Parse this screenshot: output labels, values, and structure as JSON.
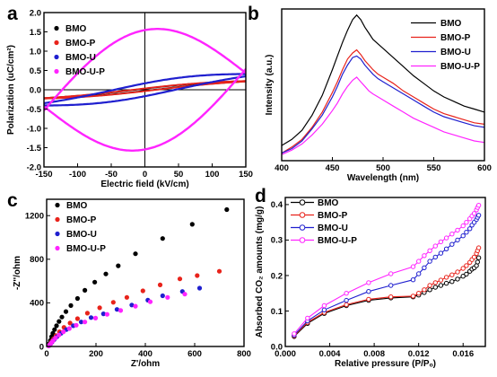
{
  "colors": {
    "BMO": "#000000",
    "BMO-P": "#e8231b",
    "BMO-U": "#1f1fcf",
    "BMO-U-P": "#ff24ff"
  },
  "chart_data": [
    {
      "id": "a",
      "panel_label": "a",
      "type": "line",
      "title": "",
      "xlabel": "Electric field (kV/cm)",
      "ylabel": "Polarization (uC/cm²)",
      "xlim": [
        -150,
        150
      ],
      "ylim": [
        -2.0,
        2.0
      ],
      "xticks": [
        "-150",
        "-100",
        "-50",
        "0",
        "50",
        "100",
        "150"
      ],
      "yticks": [
        "-2.0",
        "-1.5",
        "-1.0",
        "-0.5",
        "0.0",
        "0.5",
        "1.0",
        "1.5",
        "2.0"
      ],
      "legend": "top-left",
      "series": [
        {
          "name": "BMO",
          "color": "#000000",
          "marker": "dot",
          "loop": {
            "emax": 150,
            "pmax": 0.22,
            "pr": 0.04,
            "ec": 30
          }
        },
        {
          "name": "BMO-P",
          "color": "#e8231b",
          "marker": "dot",
          "loop": {
            "emax": 150,
            "pmax": 0.22,
            "pr": 0.05,
            "ec": 35
          }
        },
        {
          "name": "BMO-U",
          "color": "#1f1fcf",
          "marker": "dot",
          "loop": {
            "emax": 150,
            "pmax": 0.38,
            "pr": 0.24,
            "ec": 95
          }
        },
        {
          "name": "BMO-U-P",
          "color": "#ff24ff",
          "marker": "dot",
          "loop": {
            "emax": 150,
            "pmax": 0.88,
            "pr": 1.3,
            "ec": 150,
            "peak": 1.52
          }
        }
      ]
    },
    {
      "id": "b",
      "panel_label": "b",
      "type": "line",
      "title": "",
      "xlabel": "Wavelength (nm)",
      "ylabel": "Intensity (a.u.)",
      "xlim": [
        400,
        600
      ],
      "ylim": [
        0,
        1
      ],
      "xticks": [
        "400",
        "450",
        "500",
        "550",
        "600"
      ],
      "yticks": [],
      "legend": "top-right",
      "x": [
        400,
        410,
        420,
        430,
        440,
        450,
        455,
        460,
        465,
        470,
        474,
        478,
        482,
        486,
        490,
        495,
        500,
        510,
        520,
        530,
        540,
        550,
        560,
        570,
        580,
        590,
        600
      ],
      "series": [
        {
          "name": "BMO",
          "color": "#000000",
          "values": [
            0.1,
            0.14,
            0.2,
            0.3,
            0.43,
            0.6,
            0.69,
            0.78,
            0.86,
            0.93,
            0.96,
            0.93,
            0.88,
            0.84,
            0.8,
            0.77,
            0.74,
            0.68,
            0.62,
            0.56,
            0.51,
            0.46,
            0.42,
            0.39,
            0.36,
            0.34,
            0.32
          ]
        },
        {
          "name": "BMO-P",
          "color": "#e8231b",
          "values": [
            0.05,
            0.09,
            0.14,
            0.22,
            0.32,
            0.45,
            0.52,
            0.6,
            0.67,
            0.71,
            0.73,
            0.7,
            0.66,
            0.63,
            0.6,
            0.57,
            0.55,
            0.51,
            0.46,
            0.42,
            0.38,
            0.34,
            0.31,
            0.29,
            0.27,
            0.25,
            0.24
          ]
        },
        {
          "name": "BMO-U",
          "color": "#1f1fcf",
          "values": [
            0.05,
            0.08,
            0.13,
            0.21,
            0.3,
            0.42,
            0.49,
            0.57,
            0.63,
            0.68,
            0.69,
            0.67,
            0.63,
            0.6,
            0.57,
            0.54,
            0.52,
            0.48,
            0.44,
            0.4,
            0.36,
            0.32,
            0.29,
            0.27,
            0.25,
            0.23,
            0.22
          ]
        },
        {
          "name": "BMO-U-P",
          "color": "#ff24ff",
          "values": [
            0.04,
            0.07,
            0.11,
            0.17,
            0.24,
            0.33,
            0.38,
            0.44,
            0.49,
            0.53,
            0.55,
            0.52,
            0.49,
            0.46,
            0.44,
            0.42,
            0.4,
            0.36,
            0.32,
            0.28,
            0.25,
            0.22,
            0.19,
            0.17,
            0.15,
            0.13,
            0.12
          ]
        }
      ]
    },
    {
      "id": "c",
      "panel_label": "c",
      "type": "scatter",
      "title": "",
      "xlabel": "Z'/ohm",
      "ylabel": "-Z''/ohm",
      "xlim": [
        0,
        800
      ],
      "ylim": [
        0,
        1350
      ],
      "xticks": [
        "0",
        "200",
        "400",
        "600",
        "800"
      ],
      "yticks": [
        "0",
        "400",
        "800",
        "1200"
      ],
      "legend": "top-left",
      "series": [
        {
          "name": "BMO",
          "color": "#000000",
          "points": [
            [
              10,
              25
            ],
            [
              15,
              55
            ],
            [
              20,
              90
            ],
            [
              25,
              120
            ],
            [
              32,
              155
            ],
            [
              40,
              190
            ],
            [
              50,
              230
            ],
            [
              62,
              270
            ],
            [
              78,
              320
            ],
            [
              98,
              375
            ],
            [
              125,
              440
            ],
            [
              155,
              515
            ],
            [
              195,
              590
            ],
            [
              240,
              665
            ],
            [
              290,
              740
            ],
            [
              360,
              850
            ],
            [
              470,
              990
            ],
            [
              590,
              1120
            ],
            [
              730,
              1255
            ]
          ]
        },
        {
          "name": "BMO-P",
          "color": "#e8231b",
          "points": [
            [
              10,
              10
            ],
            [
              15,
              25
            ],
            [
              20,
              45
            ],
            [
              28,
              70
            ],
            [
              38,
              100
            ],
            [
              52,
              135
            ],
            [
              70,
              175
            ],
            [
              95,
              215
            ],
            [
              125,
              255
            ],
            [
              165,
              305
            ],
            [
              215,
              355
            ],
            [
              270,
              405
            ],
            [
              325,
              450
            ],
            [
              390,
              510
            ],
            [
              460,
              565
            ],
            [
              540,
              620
            ],
            [
              610,
              650
            ],
            [
              700,
              690
            ]
          ]
        },
        {
          "name": "BMO-U",
          "color": "#1f1fcf",
          "points": [
            [
              10,
              8
            ],
            [
              15,
              20
            ],
            [
              22,
              40
            ],
            [
              30,
              62
            ],
            [
              42,
              90
            ],
            [
              58,
              120
            ],
            [
              80,
              155
            ],
            [
              108,
              190
            ],
            [
              140,
              225
            ],
            [
              180,
              265
            ],
            [
              230,
              300
            ],
            [
              285,
              340
            ],
            [
              345,
              380
            ],
            [
              410,
              425
            ],
            [
              470,
              465
            ],
            [
              550,
              505
            ],
            [
              620,
              535
            ]
          ]
        },
        {
          "name": "BMO-U-P",
          "color": "#ff24ff",
          "points": [
            [
              8,
              5
            ],
            [
              12,
              15
            ],
            [
              18,
              30
            ],
            [
              26,
              52
            ],
            [
              36,
              78
            ],
            [
              50,
              105
            ],
            [
              68,
              135
            ],
            [
              92,
              165
            ],
            [
              120,
              195
            ],
            [
              155,
              225
            ],
            [
              198,
              260
            ],
            [
              245,
              295
            ],
            [
              300,
              330
            ],
            [
              360,
              370
            ],
            [
              420,
              410
            ],
            [
              490,
              450
            ],
            [
              560,
              480
            ]
          ]
        }
      ]
    },
    {
      "id": "d",
      "panel_label": "d",
      "type": "line",
      "title": "",
      "xlabel": "Relative pressure (P/Pₒ)",
      "ylabel": "Absorbed CO₂ amounts (mg/g)",
      "xlim": [
        0,
        0.018
      ],
      "ylim": [
        0,
        0.42
      ],
      "xticks": [
        "0.000",
        "0.004",
        "0.008",
        "0.012",
        "0.016"
      ],
      "yticks": [
        "0.0",
        "0.1",
        "0.2",
        "0.3",
        "0.4"
      ],
      "legend": "top-left",
      "x": [
        0.0008,
        0.002,
        0.0035,
        0.0055,
        0.0075,
        0.0095,
        0.0115,
        0.012,
        0.0125,
        0.013,
        0.0135,
        0.014,
        0.0145,
        0.015,
        0.0155,
        0.016,
        0.0163,
        0.0166,
        0.0168,
        0.017,
        0.0172,
        0.0173,
        0.0174
      ],
      "series": [
        {
          "name": "BMO",
          "color": "#000000",
          "marker": "circle",
          "values": [
            0.028,
            0.065,
            0.093,
            0.115,
            0.13,
            0.137,
            0.14,
            0.145,
            0.152,
            0.16,
            0.167,
            0.172,
            0.178,
            0.183,
            0.19,
            0.198,
            0.204,
            0.212,
            0.218,
            0.222,
            0.228,
            0.238,
            0.25
          ]
        },
        {
          "name": "BMO-P",
          "color": "#e8231b",
          "marker": "circle",
          "values": [
            0.03,
            0.068,
            0.096,
            0.118,
            0.133,
            0.14,
            0.142,
            0.15,
            0.16,
            0.172,
            0.18,
            0.187,
            0.195,
            0.202,
            0.21,
            0.22,
            0.228,
            0.237,
            0.245,
            0.252,
            0.262,
            0.27,
            0.278
          ]
        },
        {
          "name": "BMO-U",
          "color": "#1f1fcf",
          "marker": "circle",
          "values": [
            0.032,
            0.072,
            0.103,
            0.13,
            0.155,
            0.172,
            0.188,
            0.205,
            0.222,
            0.24,
            0.252,
            0.263,
            0.275,
            0.288,
            0.3,
            0.312,
            0.322,
            0.332,
            0.342,
            0.35,
            0.358,
            0.364,
            0.37
          ]
        },
        {
          "name": "BMO-U-P",
          "color": "#ff24ff",
          "marker": "circle",
          "values": [
            0.036,
            0.08,
            0.115,
            0.15,
            0.18,
            0.205,
            0.225,
            0.24,
            0.256,
            0.27,
            0.283,
            0.295,
            0.306,
            0.317,
            0.328,
            0.34,
            0.35,
            0.36,
            0.368,
            0.375,
            0.385,
            0.392,
            0.398
          ]
        }
      ]
    }
  ]
}
